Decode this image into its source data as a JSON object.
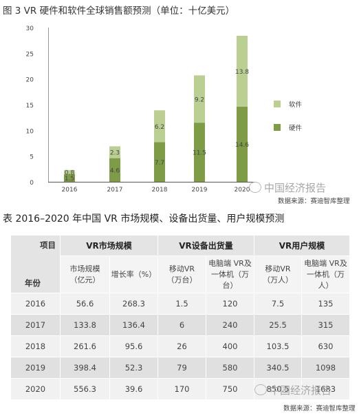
{
  "figure_title": "图 3   VR 硬件和软件全球销售额预测（单位：十亿美元）",
  "chart_data": {
    "type": "bar",
    "stacked": true,
    "categories": [
      "2016",
      "2017",
      "2018",
      "2019",
      "2020"
    ],
    "series": [
      {
        "name": "硬件",
        "values": [
          1.5,
          4.6,
          7.7,
          11.5,
          14.6
        ],
        "labels": [
          "1.5",
          "4.6",
          "7.7",
          "11.5",
          "14.6"
        ],
        "color": "#7e9c46"
      },
      {
        "name": "软件",
        "values": [
          0.8,
          2.3,
          6.2,
          9.2,
          13.8
        ],
        "labels": [
          "0.8",
          "2.3",
          "6.2",
          "9.2",
          "13.8"
        ],
        "color": "#bccf93"
      }
    ],
    "yticks": [
      "0",
      "5",
      "10",
      "15",
      "20",
      "25",
      "30"
    ],
    "ylim": [
      0,
      30
    ],
    "legend_position": "right",
    "grid": false
  },
  "watermark": "中国经济报告",
  "source": "数据来源：赛迪智库整理",
  "table": {
    "title": "表   2016–2020 年中国 VR 市场规模、设备出货量、用户规模预测",
    "corner_top": "项目",
    "corner_bottom": "年份",
    "groups": [
      "VR市场规模",
      "VR设备出货量",
      "VR用户规模"
    ],
    "subheaders": [
      [
        "市场规模",
        "（亿元）"
      ],
      [
        "增长率（%）"
      ],
      [
        "移动VR",
        "（万台）"
      ],
      [
        "电脑端 VR及",
        "一体机（万",
        "台）"
      ],
      [
        "移动VR",
        "（万人）"
      ],
      [
        "电脑端 VR及",
        "一体机（万",
        "人）"
      ]
    ],
    "rows": [
      [
        "2016",
        "56.6",
        "268.3",
        "1.5",
        "120",
        "7.5",
        "135"
      ],
      [
        "2017",
        "133.8",
        "136.4",
        "6",
        "240",
        "25.5",
        "315"
      ],
      [
        "2018",
        "261.6",
        "95.6",
        "26",
        "400",
        "103.5",
        "630"
      ],
      [
        "2019",
        "398.4",
        "52.3",
        "79",
        "580",
        "340.5",
        "1098"
      ],
      [
        "2020",
        "556.3",
        "39.6",
        "170",
        "750",
        "850.5",
        "1683"
      ]
    ]
  }
}
